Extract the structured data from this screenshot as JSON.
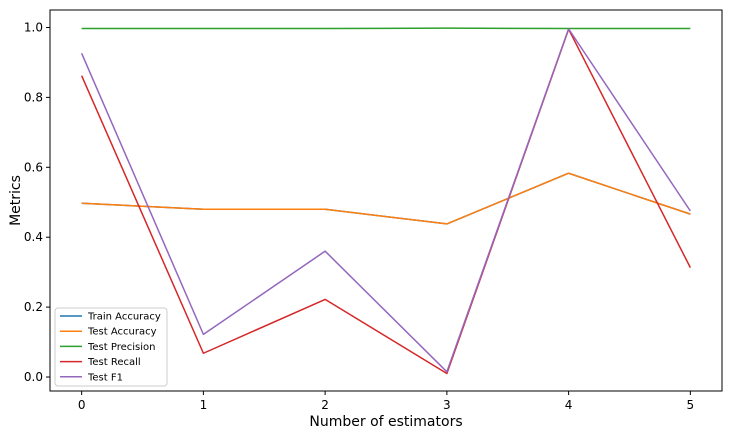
{
  "chart_data": {
    "type": "line",
    "title": "",
    "xlabel": "Number of estimators",
    "ylabel": "Metrics",
    "xlim": [
      -0.26,
      5.26
    ],
    "ylim": [
      -0.04,
      1.05
    ],
    "xticks": [
      "0",
      "1",
      "2",
      "3",
      "4",
      "5"
    ],
    "yticks": [
      "0.0",
      "0.2",
      "0.4",
      "0.6",
      "0.8",
      "1.0"
    ],
    "grid": false,
    "legend_position": "lower-left",
    "x": [
      0,
      1,
      2,
      3,
      4,
      5
    ],
    "series": [
      {
        "name": "Train Accuracy",
        "color": "#1f77b4",
        "values": [
          0.497,
          0.48,
          0.48,
          0.438,
          0.583,
          0.466
        ]
      },
      {
        "name": "Test Accuracy",
        "color": "#ff7f0e",
        "values": [
          0.497,
          0.48,
          0.48,
          0.438,
          0.583,
          0.466
        ]
      },
      {
        "name": "Test Precision",
        "color": "#2ca02c",
        "values": [
          0.997,
          0.997,
          0.997,
          0.998,
          0.997,
          0.997
        ]
      },
      {
        "name": "Test Recall",
        "color": "#d62728",
        "values": [
          0.862,
          0.068,
          0.222,
          0.01,
          0.995,
          0.313
        ]
      },
      {
        "name": "Test F1",
        "color": "#9467bd",
        "values": [
          0.926,
          0.122,
          0.36,
          0.015,
          0.996,
          0.475
        ]
      }
    ]
  }
}
